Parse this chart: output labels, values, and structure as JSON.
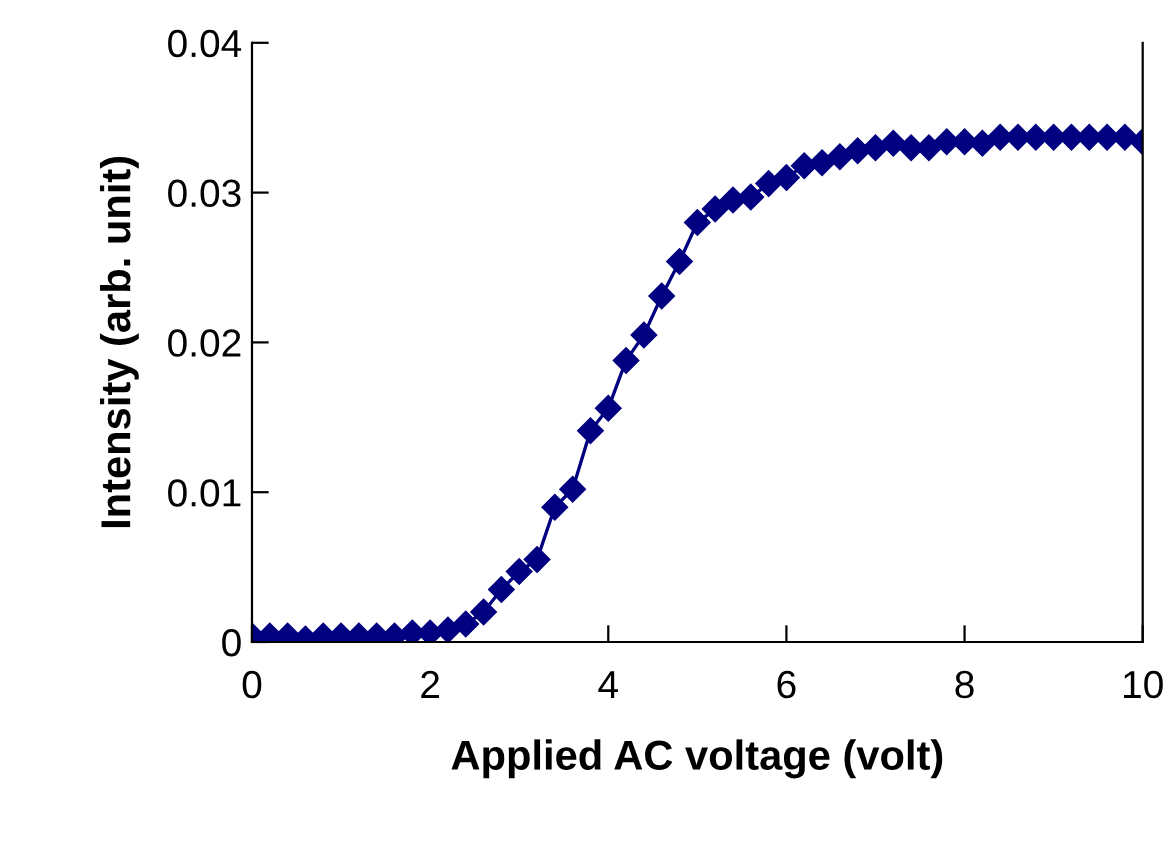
{
  "chart_data": {
    "type": "line",
    "xlabel": "Applied AC voltage (volt)",
    "ylabel": "Intensity (arb. unit)",
    "x": [
      0,
      0.2,
      0.4,
      0.6,
      0.8,
      1.0,
      1.2,
      1.4,
      1.6,
      1.8,
      2.0,
      2.2,
      2.4,
      2.6,
      2.8,
      3.0,
      3.2,
      3.4,
      3.6,
      3.8,
      4.0,
      4.2,
      4.4,
      4.6,
      4.8,
      5.0,
      5.2,
      5.4,
      5.6,
      5.8,
      6.0,
      6.2,
      6.4,
      6.6,
      6.8,
      7.0,
      7.2,
      7.4,
      7.6,
      7.8,
      8.0,
      8.2,
      8.4,
      8.6,
      8.8,
      9.0,
      9.2,
      9.4,
      9.6,
      9.8,
      10.0
    ],
    "series": [
      {
        "color": "#000080",
        "values": [
          0.0004,
          0.0004,
          0.0004,
          0.0002,
          0.0004,
          0.0004,
          0.0004,
          0.0004,
          0.0004,
          0.0006,
          0.0006,
          0.0008,
          0.0012,
          0.002,
          0.0035,
          0.0047,
          0.0055,
          0.009,
          0.0102,
          0.0141,
          0.0156,
          0.0188,
          0.0205,
          0.0231,
          0.0254,
          0.028,
          0.0289,
          0.0295,
          0.0297,
          0.0306,
          0.031,
          0.0318,
          0.032,
          0.0324,
          0.0328,
          0.033,
          0.0333,
          0.033,
          0.033,
          0.0334,
          0.0334,
          0.0333,
          0.0337,
          0.0337,
          0.0337,
          0.0337,
          0.0337,
          0.0337,
          0.0337,
          0.0337,
          0.0334
        ]
      }
    ],
    "xlim": [
      0,
      10
    ],
    "xticks": [
      0,
      2,
      4,
      6,
      8,
      10
    ],
    "ylim": [
      0,
      0.04
    ],
    "yticks": [
      0,
      0.01,
      0.02,
      0.03,
      0.04
    ],
    "grid": false,
    "legend": false,
    "marker": "diamond",
    "line_style": "solid"
  }
}
